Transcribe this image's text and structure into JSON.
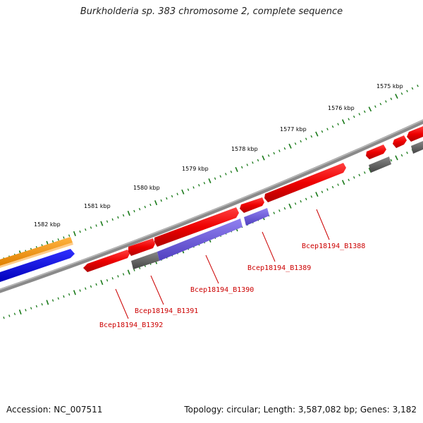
{
  "title": "Burkholderia sp. 383 chromosome 2, complete sequence",
  "footer": {
    "accession": "Accession: NC_007511",
    "summary": "Topology: circular; Length: 3,587,082 bp; Genes: 3,182"
  },
  "scale_labels": [
    "1575 kbp",
    "1576 kbp",
    "1577 kbp",
    "1578 kbp",
    "1579 kbp",
    "1580 kbp",
    "1581 kbp",
    "1582 kbp"
  ],
  "gene_labels": [
    "Bcep18194_B1388",
    "Bcep18194_B1389",
    "Bcep18194_B1390",
    "Bcep18194_B1391",
    "Bcep18194_B1392"
  ],
  "colors": {
    "forward_cds": "#ff0000",
    "reverse_cds": "#7060d8",
    "other": "#666666",
    "orange_track": "#ff9900",
    "blue_track": "#0000ee",
    "ticks": "#1a7a1a",
    "backbone": "#777777",
    "label_color": "#cc0000"
  }
}
